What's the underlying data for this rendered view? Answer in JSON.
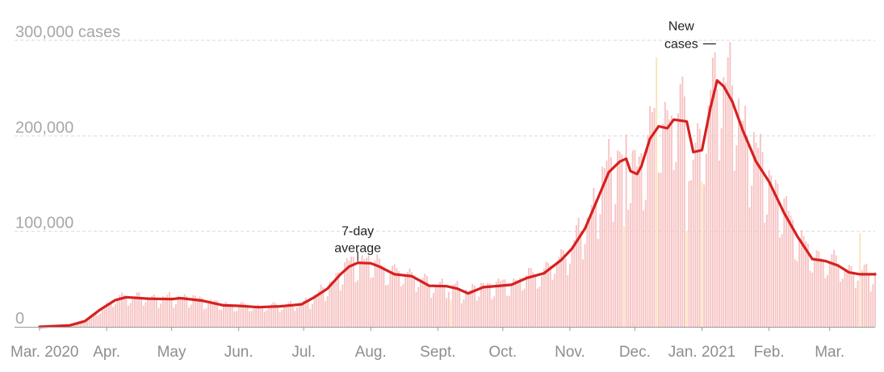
{
  "chart_data": {
    "type": "bar",
    "title": "",
    "xlabel": "",
    "ylabel": "",
    "ylim": [
      0,
      300000
    ],
    "yticks": [
      {
        "value": 0,
        "label": "0"
      },
      {
        "value": 100000,
        "label": "100,000"
      },
      {
        "value": 200000,
        "label": "200,000"
      },
      {
        "value": 300000,
        "label": "300,000 cases"
      }
    ],
    "xticks": [
      {
        "date": "2020-03-01",
        "label": "Mar. 2020"
      },
      {
        "date": "2020-04-01",
        "label": "Apr."
      },
      {
        "date": "2020-05-01",
        "label": "May"
      },
      {
        "date": "2020-06-01",
        "label": "Jun."
      },
      {
        "date": "2020-07-01",
        "label": "Jul."
      },
      {
        "date": "2020-08-01",
        "label": "Aug."
      },
      {
        "date": "2020-09-01",
        "label": "Sept."
      },
      {
        "date": "2020-10-01",
        "label": "Oct."
      },
      {
        "date": "2020-11-01",
        "label": "Nov."
      },
      {
        "date": "2020-12-01",
        "label": "Dec."
      },
      {
        "date": "2021-01-01",
        "label": "Jan. 2021"
      },
      {
        "date": "2021-02-01",
        "label": "Feb."
      },
      {
        "date": "2021-03-01",
        "label": "Mar."
      }
    ],
    "x_range": [
      "2020-03-01",
      "2021-03-22"
    ],
    "grid": true,
    "colors": {
      "bars": "#f7c4c4",
      "highlight_bars": "#fbe3b8",
      "average_line": "#d62020",
      "grid": "#d9d9d9",
      "tick_text": "#a7a7a7"
    },
    "series": [
      {
        "name": "7-day average",
        "type": "line",
        "points": [
          [
            "2020-03-01",
            0
          ],
          [
            "2020-03-15",
            1500
          ],
          [
            "2020-03-22",
            6000
          ],
          [
            "2020-03-29",
            18000
          ],
          [
            "2020-04-05",
            28000
          ],
          [
            "2020-04-10",
            31000
          ],
          [
            "2020-04-20",
            29500
          ],
          [
            "2020-05-01",
            29000
          ],
          [
            "2020-05-05",
            30000
          ],
          [
            "2020-05-15",
            27500
          ],
          [
            "2020-05-25",
            22500
          ],
          [
            "2020-06-01",
            22000
          ],
          [
            "2020-06-10",
            20500
          ],
          [
            "2020-06-20",
            21500
          ],
          [
            "2020-06-30",
            23500
          ],
          [
            "2020-07-06",
            31000
          ],
          [
            "2020-07-12",
            40000
          ],
          [
            "2020-07-18",
            55000
          ],
          [
            "2020-07-22",
            63000
          ],
          [
            "2020-07-26",
            67000
          ],
          [
            "2020-08-01",
            66500
          ],
          [
            "2020-08-05",
            63000
          ],
          [
            "2020-08-12",
            55000
          ],
          [
            "2020-08-20",
            53000
          ],
          [
            "2020-08-28",
            43000
          ],
          [
            "2020-09-05",
            42500
          ],
          [
            "2020-09-10",
            40000
          ],
          [
            "2020-09-15",
            35000
          ],
          [
            "2020-09-22",
            41500
          ],
          [
            "2020-09-30",
            43000
          ],
          [
            "2020-10-05",
            44000
          ],
          [
            "2020-10-12",
            51000
          ],
          [
            "2020-10-20",
            56000
          ],
          [
            "2020-10-28",
            70000
          ],
          [
            "2020-11-02",
            82000
          ],
          [
            "2020-11-08",
            103000
          ],
          [
            "2020-11-14",
            135000
          ],
          [
            "2020-11-19",
            162000
          ],
          [
            "2020-11-24",
            173000
          ],
          [
            "2020-11-27",
            176000
          ],
          [
            "2020-11-29",
            163000
          ],
          [
            "2020-12-02",
            160000
          ],
          [
            "2020-12-04",
            168000
          ],
          [
            "2020-12-08",
            197000
          ],
          [
            "2020-12-12",
            210000
          ],
          [
            "2020-12-16",
            208000
          ],
          [
            "2020-12-19",
            217000
          ],
          [
            "2020-12-25",
            215000
          ],
          [
            "2020-12-28",
            183000
          ],
          [
            "2021-01-01",
            185000
          ],
          [
            "2021-01-05",
            230000
          ],
          [
            "2021-01-08",
            258000
          ],
          [
            "2021-01-11",
            252000
          ],
          [
            "2021-01-15",
            236000
          ],
          [
            "2021-01-20",
            205000
          ],
          [
            "2021-01-26",
            173000
          ],
          [
            "2021-02-01",
            152000
          ],
          [
            "2021-02-08",
            119000
          ],
          [
            "2021-02-14",
            95000
          ],
          [
            "2021-02-21",
            71000
          ],
          [
            "2021-02-27",
            69000
          ],
          [
            "2021-03-05",
            64000
          ],
          [
            "2021-03-10",
            57000
          ],
          [
            "2021-03-15",
            55000
          ],
          [
            "2021-03-22",
            55000
          ]
        ]
      },
      {
        "name": "New cases",
        "type": "bar",
        "frequency": "daily",
        "weekly_pattern": [
          0.8,
          1.06,
          1.1,
          1.12,
          1.14,
          1.06,
          0.72
        ],
        "highlight_bars": [
          {
            "date": "2020-09-07",
            "value": 28000
          },
          {
            "date": "2020-11-26",
            "value": 105000
          },
          {
            "date": "2020-12-11",
            "value": 282000
          },
          {
            "date": "2020-12-25",
            "value": 100000
          },
          {
            "date": "2021-01-01",
            "value": 152000
          },
          {
            "date": "2021-03-15",
            "value": 98000
          }
        ]
      }
    ],
    "annotations": [
      {
        "lines": [
          "7-day",
          "average"
        ],
        "date": "2020-07-26",
        "value": 67000
      },
      {
        "lines": [
          "New",
          "cases"
        ],
        "date": "2021-01-03",
        "value": 298000
      }
    ]
  }
}
